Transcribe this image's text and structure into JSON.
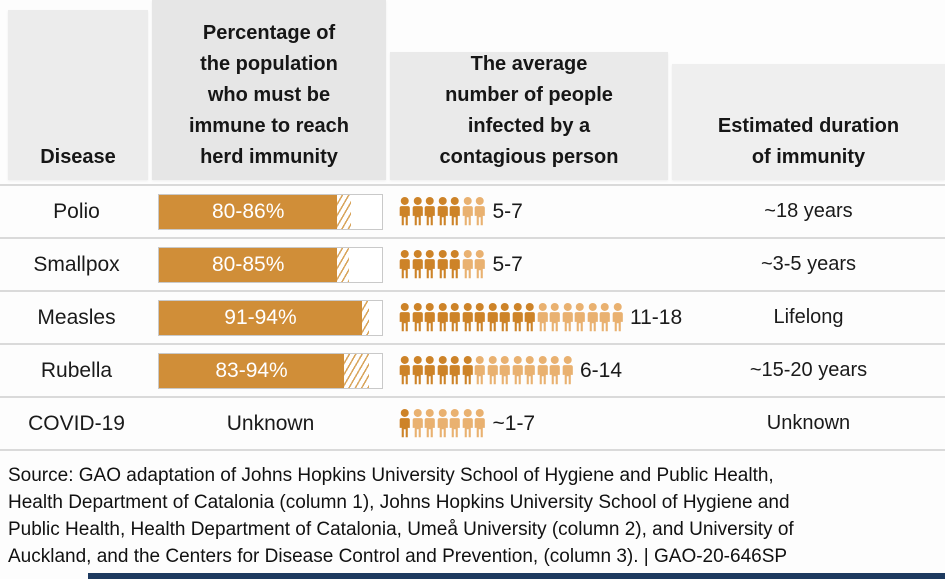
{
  "header": {
    "disease": "Disease",
    "herd_immunity": "Percentage of\nthe population\nwho must be\nimmune to reach\nherd immunity",
    "avg_infected": "The average\nnumber of people\ninfected by a\ncontagious person",
    "duration": "Estimated duration\nof immunity"
  },
  "chart_data": {
    "type": "table",
    "description": "Herd immunity thresholds (pictured as 0-100% bars with hatched range segment), average number of people infected by a contagious person (pictured as person icons, dark = minimum, light = up to maximum), and estimated duration of immunity",
    "columns": [
      "Disease",
      "Percentage of the population who must be immune to reach herd immunity",
      "The average number of people infected by a contagious person",
      "Estimated duration of immunity"
    ],
    "bar_axis": {
      "min": 0,
      "max": 100,
      "unit": "%"
    },
    "rows": [
      {
        "disease": "Polio",
        "herd_immunity_pct": {
          "label": "80-86%",
          "low": 80,
          "high": 86
        },
        "herd_immunity_text": null,
        "avg_infected": {
          "label": "5-7",
          "min": 5,
          "max": 7,
          "dark_icons": 5,
          "light_icons": 2
        },
        "duration": "~18 years"
      },
      {
        "disease": "Smallpox",
        "herd_immunity_pct": {
          "label": "80-85%",
          "low": 80,
          "high": 85
        },
        "herd_immunity_text": null,
        "avg_infected": {
          "label": "5-7",
          "min": 5,
          "max": 7,
          "dark_icons": 5,
          "light_icons": 2
        },
        "duration": "~3-5 years"
      },
      {
        "disease": "Measles",
        "herd_immunity_pct": {
          "label": "91-94%",
          "low": 91,
          "high": 94
        },
        "herd_immunity_text": null,
        "avg_infected": {
          "label": "11-18",
          "min": 11,
          "max": 18,
          "dark_icons": 11,
          "light_icons": 7
        },
        "duration": "Lifelong"
      },
      {
        "disease": "Rubella",
        "herd_immunity_pct": {
          "label": "83-94%",
          "low": 83,
          "high": 94
        },
        "herd_immunity_text": null,
        "avg_infected": {
          "label": "6-14",
          "min": 6,
          "max": 14,
          "dark_icons": 6,
          "light_icons": 8
        },
        "duration": "~15-20 years"
      },
      {
        "disease": "COVID-19",
        "herd_immunity_pct": null,
        "herd_immunity_text": "Unknown",
        "avg_infected": {
          "label": "~1-7",
          "min": 1,
          "max": 7,
          "dark_icons": 1,
          "light_icons": 6
        },
        "duration": "Unknown"
      }
    ]
  },
  "colors": {
    "bar_solid": "#D08E38",
    "hatch_stripe": "#D9A55C",
    "icon_dark": "#CD8328",
    "icon_light": "#E9B170",
    "header_gray": "#e8e8e8",
    "divider_gray": "#dadada",
    "footer_bar": "#1E3A5F"
  },
  "source_note": "Source: GAO adaptation of Johns Hopkins University School of Hygiene and Public Health,\nHealth Department of Catalonia (column 1), Johns Hopkins University School of Hygiene and\nPublic Health, Health Department of Catalonia, Umeå University (column 2), and University of\nAuckland, and the Centers for Disease Control and Prevention, (column 3).  |  GAO-20-646SP"
}
